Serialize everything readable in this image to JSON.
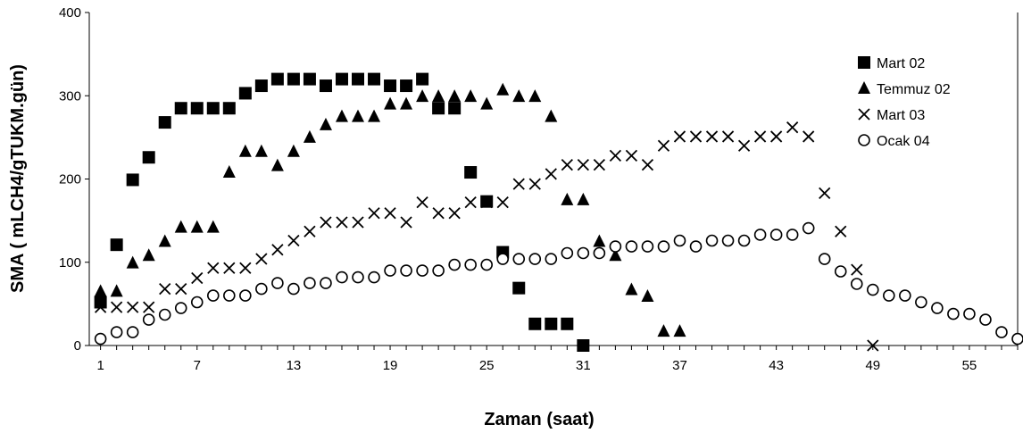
{
  "chart_data": {
    "type": "scatter",
    "xlabel": "Zaman (saat)",
    "ylabel": "SMA ( mLCH4/gTUKM.gün)",
    "xlim": [
      0.3,
      58
    ],
    "ylim": [
      0,
      400
    ],
    "xticks": [
      1,
      7,
      13,
      19,
      25,
      31,
      37,
      43,
      49,
      55
    ],
    "yticks": [
      0,
      100,
      200,
      300,
      400
    ],
    "grid": false,
    "legend_position": "right",
    "series": [
      {
        "name": "Mart 02",
        "marker": "square",
        "points": [
          [
            1,
            52
          ],
          [
            2,
            121
          ],
          [
            3,
            199
          ],
          [
            4,
            226
          ],
          [
            5,
            268
          ],
          [
            6,
            285
          ],
          [
            7,
            285
          ],
          [
            8,
            285
          ],
          [
            9,
            285
          ],
          [
            10,
            303
          ],
          [
            11,
            312
          ],
          [
            12,
            320
          ],
          [
            13,
            320
          ],
          [
            14,
            320
          ],
          [
            15,
            312
          ],
          [
            16,
            320
          ],
          [
            17,
            320
          ],
          [
            18,
            320
          ],
          [
            19,
            312
          ],
          [
            20,
            312
          ],
          [
            21,
            320
          ],
          [
            22,
            285
          ],
          [
            23,
            285
          ],
          [
            24,
            208
          ],
          [
            25,
            173
          ],
          [
            26,
            112
          ],
          [
            27,
            69
          ],
          [
            28,
            26
          ],
          [
            29,
            26
          ],
          [
            30,
            26
          ],
          [
            31,
            0
          ]
        ]
      },
      {
        "name": "Temmuz 02",
        "marker": "triangle",
        "points": [
          [
            1,
            65
          ],
          [
            2,
            65
          ],
          [
            3,
            99
          ],
          [
            4,
            108
          ],
          [
            5,
            125
          ],
          [
            6,
            142
          ],
          [
            7,
            142
          ],
          [
            8,
            142
          ],
          [
            9,
            208
          ],
          [
            10,
            233
          ],
          [
            11,
            233
          ],
          [
            12,
            216
          ],
          [
            13,
            233
          ],
          [
            14,
            250
          ],
          [
            15,
            265
          ],
          [
            16,
            275
          ],
          [
            17,
            275
          ],
          [
            18,
            275
          ],
          [
            19,
            290
          ],
          [
            20,
            290
          ],
          [
            21,
            299
          ],
          [
            22,
            299
          ],
          [
            23,
            299
          ],
          [
            24,
            299
          ],
          [
            25,
            290
          ],
          [
            26,
            307
          ],
          [
            27,
            299
          ],
          [
            28,
            299
          ],
          [
            29,
            275
          ],
          [
            30,
            175
          ],
          [
            31,
            175
          ],
          [
            32,
            125
          ],
          [
            33,
            108
          ],
          [
            34,
            67
          ],
          [
            35,
            59
          ],
          [
            36,
            17
          ],
          [
            37,
            17
          ]
        ]
      },
      {
        "name": "Mart 03",
        "marker": "x",
        "points": [
          [
            1,
            46
          ],
          [
            2,
            46
          ],
          [
            3,
            46
          ],
          [
            4,
            46
          ],
          [
            5,
            68
          ],
          [
            6,
            68
          ],
          [
            7,
            81
          ],
          [
            8,
            93
          ],
          [
            9,
            93
          ],
          [
            10,
            93
          ],
          [
            11,
            104
          ],
          [
            12,
            115
          ],
          [
            13,
            126
          ],
          [
            14,
            137
          ],
          [
            15,
            148
          ],
          [
            16,
            148
          ],
          [
            17,
            148
          ],
          [
            18,
            159
          ],
          [
            19,
            159
          ],
          [
            20,
            148
          ],
          [
            21,
            172
          ],
          [
            22,
            159
          ],
          [
            23,
            159
          ],
          [
            24,
            172
          ],
          [
            25,
            172
          ],
          [
            26,
            172
          ],
          [
            27,
            194
          ],
          [
            28,
            194
          ],
          [
            29,
            206
          ],
          [
            30,
            217
          ],
          [
            31,
            217
          ],
          [
            32,
            217
          ],
          [
            33,
            228
          ],
          [
            34,
            228
          ],
          [
            35,
            217
          ],
          [
            36,
            240
          ],
          [
            37,
            251
          ],
          [
            38,
            251
          ],
          [
            39,
            251
          ],
          [
            40,
            251
          ],
          [
            41,
            240
          ],
          [
            42,
            251
          ],
          [
            43,
            251
          ],
          [
            44,
            262
          ],
          [
            45,
            251
          ],
          [
            46,
            183
          ],
          [
            47,
            137
          ],
          [
            48,
            91
          ],
          [
            49,
            0
          ]
        ]
      },
      {
        "name": "Ocak 04",
        "marker": "circle",
        "points": [
          [
            1,
            8
          ],
          [
            2,
            16
          ],
          [
            3,
            16
          ],
          [
            4,
            31
          ],
          [
            5,
            37
          ],
          [
            6,
            45
          ],
          [
            7,
            52
          ],
          [
            8,
            60
          ],
          [
            9,
            60
          ],
          [
            10,
            60
          ],
          [
            11,
            68
          ],
          [
            12,
            75
          ],
          [
            13,
            68
          ],
          [
            14,
            75
          ],
          [
            15,
            75
          ],
          [
            16,
            82
          ],
          [
            17,
            82
          ],
          [
            18,
            82
          ],
          [
            19,
            90
          ],
          [
            20,
            90
          ],
          [
            21,
            90
          ],
          [
            22,
            90
          ],
          [
            23,
            97
          ],
          [
            24,
            97
          ],
          [
            25,
            97
          ],
          [
            26,
            104
          ],
          [
            27,
            104
          ],
          [
            28,
            104
          ],
          [
            29,
            104
          ],
          [
            30,
            111
          ],
          [
            31,
            111
          ],
          [
            32,
            111
          ],
          [
            33,
            119
          ],
          [
            34,
            119
          ],
          [
            35,
            119
          ],
          [
            36,
            119
          ],
          [
            37,
            126
          ],
          [
            38,
            119
          ],
          [
            39,
            126
          ],
          [
            40,
            126
          ],
          [
            41,
            126
          ],
          [
            42,
            133
          ],
          [
            43,
            133
          ],
          [
            44,
            133
          ],
          [
            45,
            141
          ],
          [
            46,
            104
          ],
          [
            47,
            89
          ],
          [
            48,
            74
          ],
          [
            49,
            67
          ],
          [
            50,
            60
          ],
          [
            51,
            60
          ],
          [
            52,
            52
          ],
          [
            53,
            45
          ],
          [
            54,
            38
          ],
          [
            55,
            38
          ],
          [
            56,
            31
          ],
          [
            57,
            16
          ],
          [
            58,
            8
          ]
        ]
      }
    ]
  }
}
